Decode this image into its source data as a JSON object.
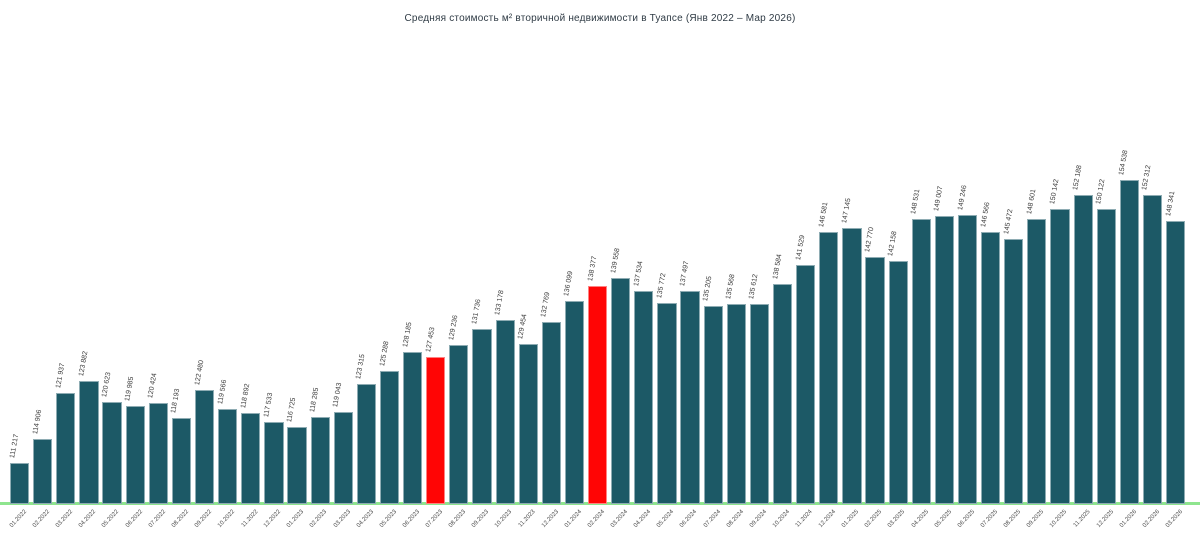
{
  "chart_data": {
    "type": "bar",
    "title": "Средняя стоимость м² вторичной недвижимости в Туапсе (Янв 2022 – Мар 2026)",
    "xlabel": "",
    "ylabel": "",
    "ylim": [
      105000,
      156500
    ],
    "grid": false,
    "legend": "none",
    "categories": [
      "01.2022",
      "02.2022",
      "03.2022",
      "04.2022",
      "05.2022",
      "06.2022",
      "07.2022",
      "08.2022",
      "09.2022",
      "10.2022",
      "11.2022",
      "12.2022",
      "01.2023",
      "02.2023",
      "03.2023",
      "04.2023",
      "05.2023",
      "06.2023",
      "07.2023",
      "08.2023",
      "09.2023",
      "10.2023",
      "11.2023",
      "12.2023",
      "01.2024",
      "02.2024",
      "03.2024",
      "04.2024",
      "05.2024",
      "06.2024",
      "07.2024",
      "08.2024",
      "09.2024",
      "10.2024",
      "11.2024",
      "12.2024",
      "01.2025",
      "02.2025",
      "03.2025",
      "04.2025",
      "05.2025",
      "06.2025",
      "07.2025",
      "08.2025",
      "09.2025",
      "10.2025",
      "11.2025",
      "12.2025",
      "01.2026",
      "02.2026",
      "03.2026"
    ],
    "values": [
      111217,
      114906,
      121937,
      123882,
      120623,
      119985,
      120424,
      118193,
      122480,
      119566,
      118892,
      117533,
      116725,
      118285,
      119043,
      123315,
      125288,
      128185,
      127453,
      129236,
      131736,
      133178,
      129454,
      132769,
      136099,
      138377,
      139558,
      137534,
      135772,
      137497,
      135205,
      135568,
      135612,
      138584,
      141529,
      146581,
      147145,
      142770,
      142158,
      148531,
      149007,
      149246,
      146566,
      145472,
      148601,
      150142,
      152188,
      150122,
      154538,
      152312,
      148341
    ],
    "value_labels": [
      "111 217",
      "114 906",
      "121 937",
      "123 882",
      "120 623",
      "119 985",
      "120 424",
      "118 193",
      "122 480",
      "119 566",
      "118 892",
      "117 533",
      "116 725",
      "118 285",
      "119 043",
      "123 315",
      "125 288",
      "128 185",
      "127 453",
      "129 236",
      "131 736",
      "133 178",
      "129 454",
      "132 769",
      "136 099",
      "138 377",
      "139 558",
      "137 534",
      "135 772",
      "137 497",
      "135 205",
      "135 568",
      "135 612",
      "138 584",
      "141 529",
      "146 581",
      "147 145",
      "142 770",
      "142 158",
      "148 531",
      "149 007",
      "149 246",
      "146 566",
      "145 472",
      "148 601",
      "150 142",
      "152 188",
      "150 122",
      "154 538",
      "152 312",
      "148 341"
    ],
    "highlighted_categories": [
      "07.2023",
      "02.2024"
    ],
    "colors": {
      "bar": "#1c5966",
      "highlight": "#ff0505",
      "baseline": "#8ee58e",
      "title_text": "#2f3b45",
      "value_label_text": "#3c3c3c",
      "tick_text": "#4a4a4a"
    }
  }
}
